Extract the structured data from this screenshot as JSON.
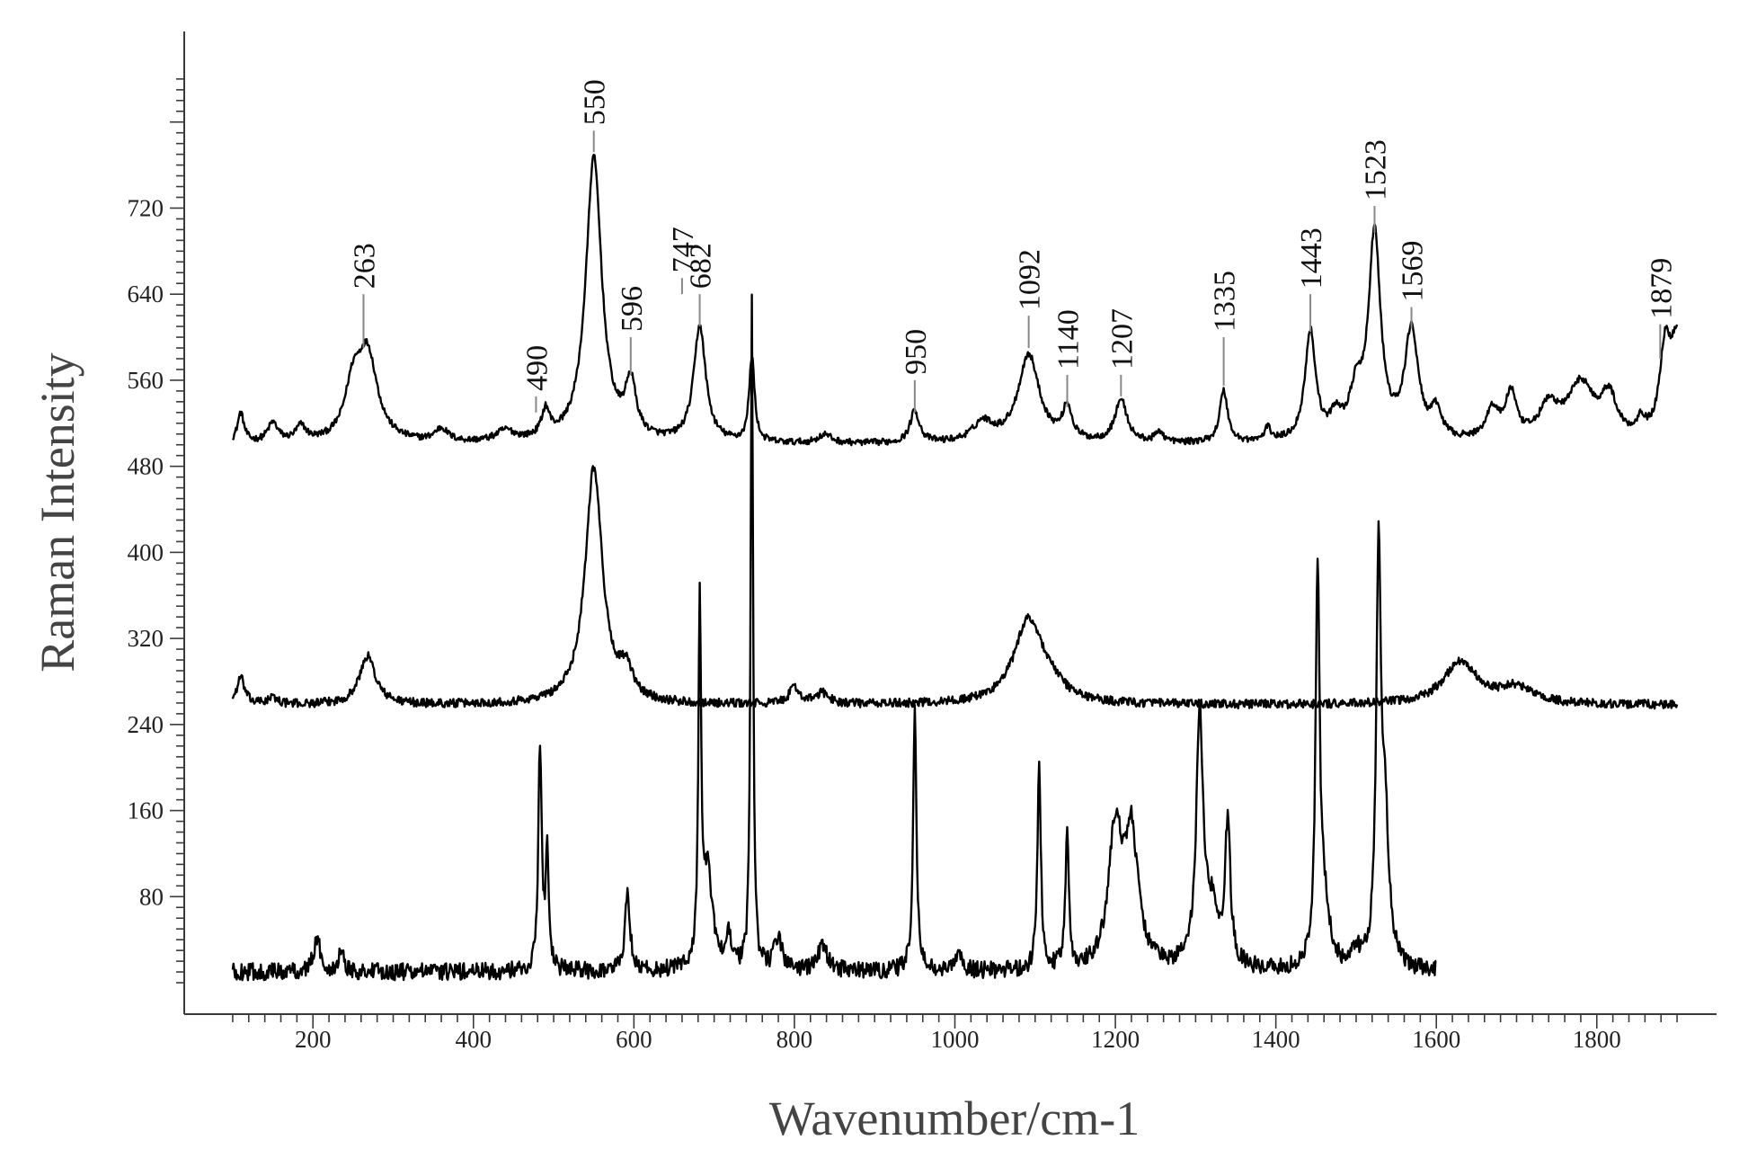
{
  "chart_data": {
    "type": "line",
    "xlabel": "Wavenumber/cm-1",
    "ylabel": "Raman Intensity",
    "xlim": [
      90,
      1910
    ],
    "ylim": [
      -10,
      880
    ],
    "x_ticks": [
      200,
      400,
      600,
      800,
      1000,
      1200,
      1400,
      1600,
      1800
    ],
    "y_ticks": [
      80,
      160,
      240,
      320,
      400,
      480,
      560,
      640,
      720
    ],
    "grid": false,
    "legend": "none",
    "series": [
      {
        "baseline": 500,
        "x_range": [
          100,
          1900
        ],
        "noise": 3,
        "peaks": [
          [
            110,
            28,
            5
          ],
          [
            150,
            18,
            8
          ],
          [
            185,
            14,
            8
          ],
          [
            250,
            45,
            12
          ],
          [
            268,
            80,
            15
          ],
          [
            360,
            12,
            10
          ],
          [
            440,
            10,
            14
          ],
          [
            490,
            25,
            6
          ],
          [
            550,
            265,
            12
          ],
          [
            596,
            50,
            8
          ],
          [
            682,
            108,
            9
          ],
          [
            747,
            80,
            4
          ],
          [
            838,
            8,
            10
          ],
          [
            950,
            30,
            7
          ],
          [
            1035,
            18,
            15
          ],
          [
            1092,
            82,
            16
          ],
          [
            1140,
            30,
            7
          ],
          [
            1207,
            40,
            9
          ],
          [
            1255,
            10,
            6
          ],
          [
            1335,
            48,
            6
          ],
          [
            1390,
            12,
            5
          ],
          [
            1443,
            102,
            8
          ],
          [
            1475,
            20,
            8
          ],
          [
            1500,
            40,
            10
          ],
          [
            1523,
            190,
            9
          ],
          [
            1569,
            102,
            10
          ],
          [
            1600,
            25,
            8
          ],
          [
            1670,
            28,
            10
          ],
          [
            1693,
            42,
            8
          ],
          [
            1740,
            30,
            15
          ],
          [
            1780,
            52,
            20
          ],
          [
            1815,
            38,
            12
          ],
          [
            1855,
            15,
            6
          ],
          [
            1885,
            75,
            8
          ],
          [
            1900,
            90,
            10
          ]
        ]
      },
      {
        "baseline": 258,
        "x_range": [
          100,
          1900
        ],
        "noise": 4,
        "peaks": [
          [
            110,
            25,
            6
          ],
          [
            150,
            6,
            8
          ],
          [
            268,
            45,
            12
          ],
          [
            550,
            220,
            13
          ],
          [
            590,
            25,
            10
          ],
          [
            800,
            15,
            8
          ],
          [
            835,
            10,
            10
          ],
          [
            1092,
            78,
            22
          ],
          [
            1120,
            10,
            20
          ],
          [
            1630,
            40,
            25
          ],
          [
            1700,
            15,
            25
          ]
        ]
      },
      {
        "baseline": 10,
        "x_range": [
          100,
          1600
        ],
        "noise": 8,
        "peaks": [
          [
            205,
            30,
            5
          ],
          [
            235,
            20,
            4
          ],
          [
            483,
            210,
            2.5
          ],
          [
            492,
            105,
            2.5
          ],
          [
            592,
            70,
            4
          ],
          [
            682,
            330,
            2
          ],
          [
            692,
            90,
            7
          ],
          [
            718,
            35,
            4
          ],
          [
            747,
            620,
            1.8
          ],
          [
            780,
            30,
            6
          ],
          [
            835,
            22,
            8
          ],
          [
            950,
            245,
            2.5
          ],
          [
            1005,
            15,
            5
          ],
          [
            1105,
            195,
            2.5
          ],
          [
            1140,
            130,
            2.5
          ],
          [
            1200,
            125,
            10
          ],
          [
            1220,
            120,
            10
          ],
          [
            1305,
            230,
            5
          ],
          [
            1320,
            50,
            10
          ],
          [
            1340,
            130,
            4
          ],
          [
            1452,
            350,
            3
          ],
          [
            1460,
            60,
            8
          ],
          [
            1500,
            15,
            5
          ],
          [
            1528,
            365,
            3.5
          ],
          [
            1536,
            130,
            6
          ]
        ]
      }
    ],
    "peak_annotations": [
      {
        "label": "263",
        "x": 263,
        "line_top": 640,
        "line_bottom": 590
      },
      {
        "label": "490",
        "x": 478,
        "line_top": 545,
        "line_bottom": 530
      },
      {
        "label": "550",
        "x": 550,
        "line_top": 792,
        "line_bottom": 772
      },
      {
        "label": "596",
        "x": 596,
        "line_top": 600,
        "line_bottom": 565
      },
      {
        "label": "682",
        "x": 682,
        "line_top": 640,
        "line_bottom": 610
      },
      {
        "label": "747",
        "x": 660,
        "line_top": 655,
        "line_bottom": 640
      },
      {
        "label": "950",
        "x": 950,
        "line_top": 560,
        "line_bottom": 530
      },
      {
        "label": "1092",
        "x": 1092,
        "line_top": 620,
        "line_bottom": 590
      },
      {
        "label": "1140",
        "x": 1140,
        "line_top": 565,
        "line_bottom": 535
      },
      {
        "label": "1207",
        "x": 1207,
        "line_top": 565,
        "line_bottom": 545
      },
      {
        "label": "1335",
        "x": 1335,
        "line_top": 600,
        "line_bottom": 555
      },
      {
        "label": "1443",
        "x": 1443,
        "line_top": 640,
        "line_bottom": 605
      },
      {
        "label": "1523",
        "x": 1523,
        "line_top": 722,
        "line_bottom": 697
      },
      {
        "label": "1569",
        "x": 1569,
        "line_top": 628,
        "line_bottom": 608
      },
      {
        "label": "1879",
        "x": 1879,
        "line_top": 612,
        "line_bottom": 580
      }
    ]
  }
}
